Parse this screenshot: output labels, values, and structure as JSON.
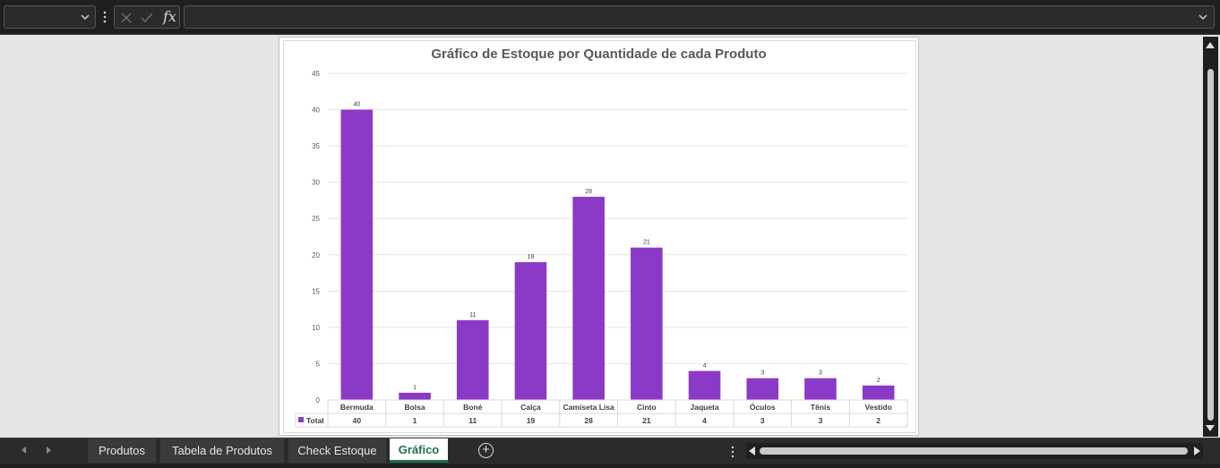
{
  "formula_bar": {
    "name_box_value": "",
    "fx_label": "fx",
    "formula_value": ""
  },
  "sheet_tabs": [
    {
      "label": "Produtos",
      "active": false
    },
    {
      "label": "Tabela de Produtos",
      "active": false
    },
    {
      "label": "Check Estoque",
      "active": false
    },
    {
      "label": "Gráfico",
      "active": true
    }
  ],
  "icons": {
    "cancel": "close-icon",
    "enter": "check-icon",
    "add_sheet": "plus-circle-icon"
  },
  "colors": {
    "bar": "#8b3ac7",
    "active_tab": "#1e7145"
  },
  "chart_data": {
    "type": "bar",
    "title": "Gráfico de Estoque por Quantidade de cada Produto",
    "categories": [
      "Bermuda",
      "Bolsa",
      "Boné",
      "Calça",
      "Camiseta Lisa",
      "Cinto",
      "Jaqueta",
      "Óculos",
      "Tênis",
      "Vestido"
    ],
    "series": [
      {
        "name": "Total",
        "values": [
          40,
          1,
          11,
          19,
          28,
          21,
          4,
          3,
          3,
          2
        ]
      }
    ],
    "ylim": [
      0,
      45
    ],
    "yticks": [
      0,
      5,
      10,
      15,
      20,
      25,
      30,
      35,
      40,
      45
    ],
    "grid": true,
    "data_labels": true,
    "data_table": true
  }
}
